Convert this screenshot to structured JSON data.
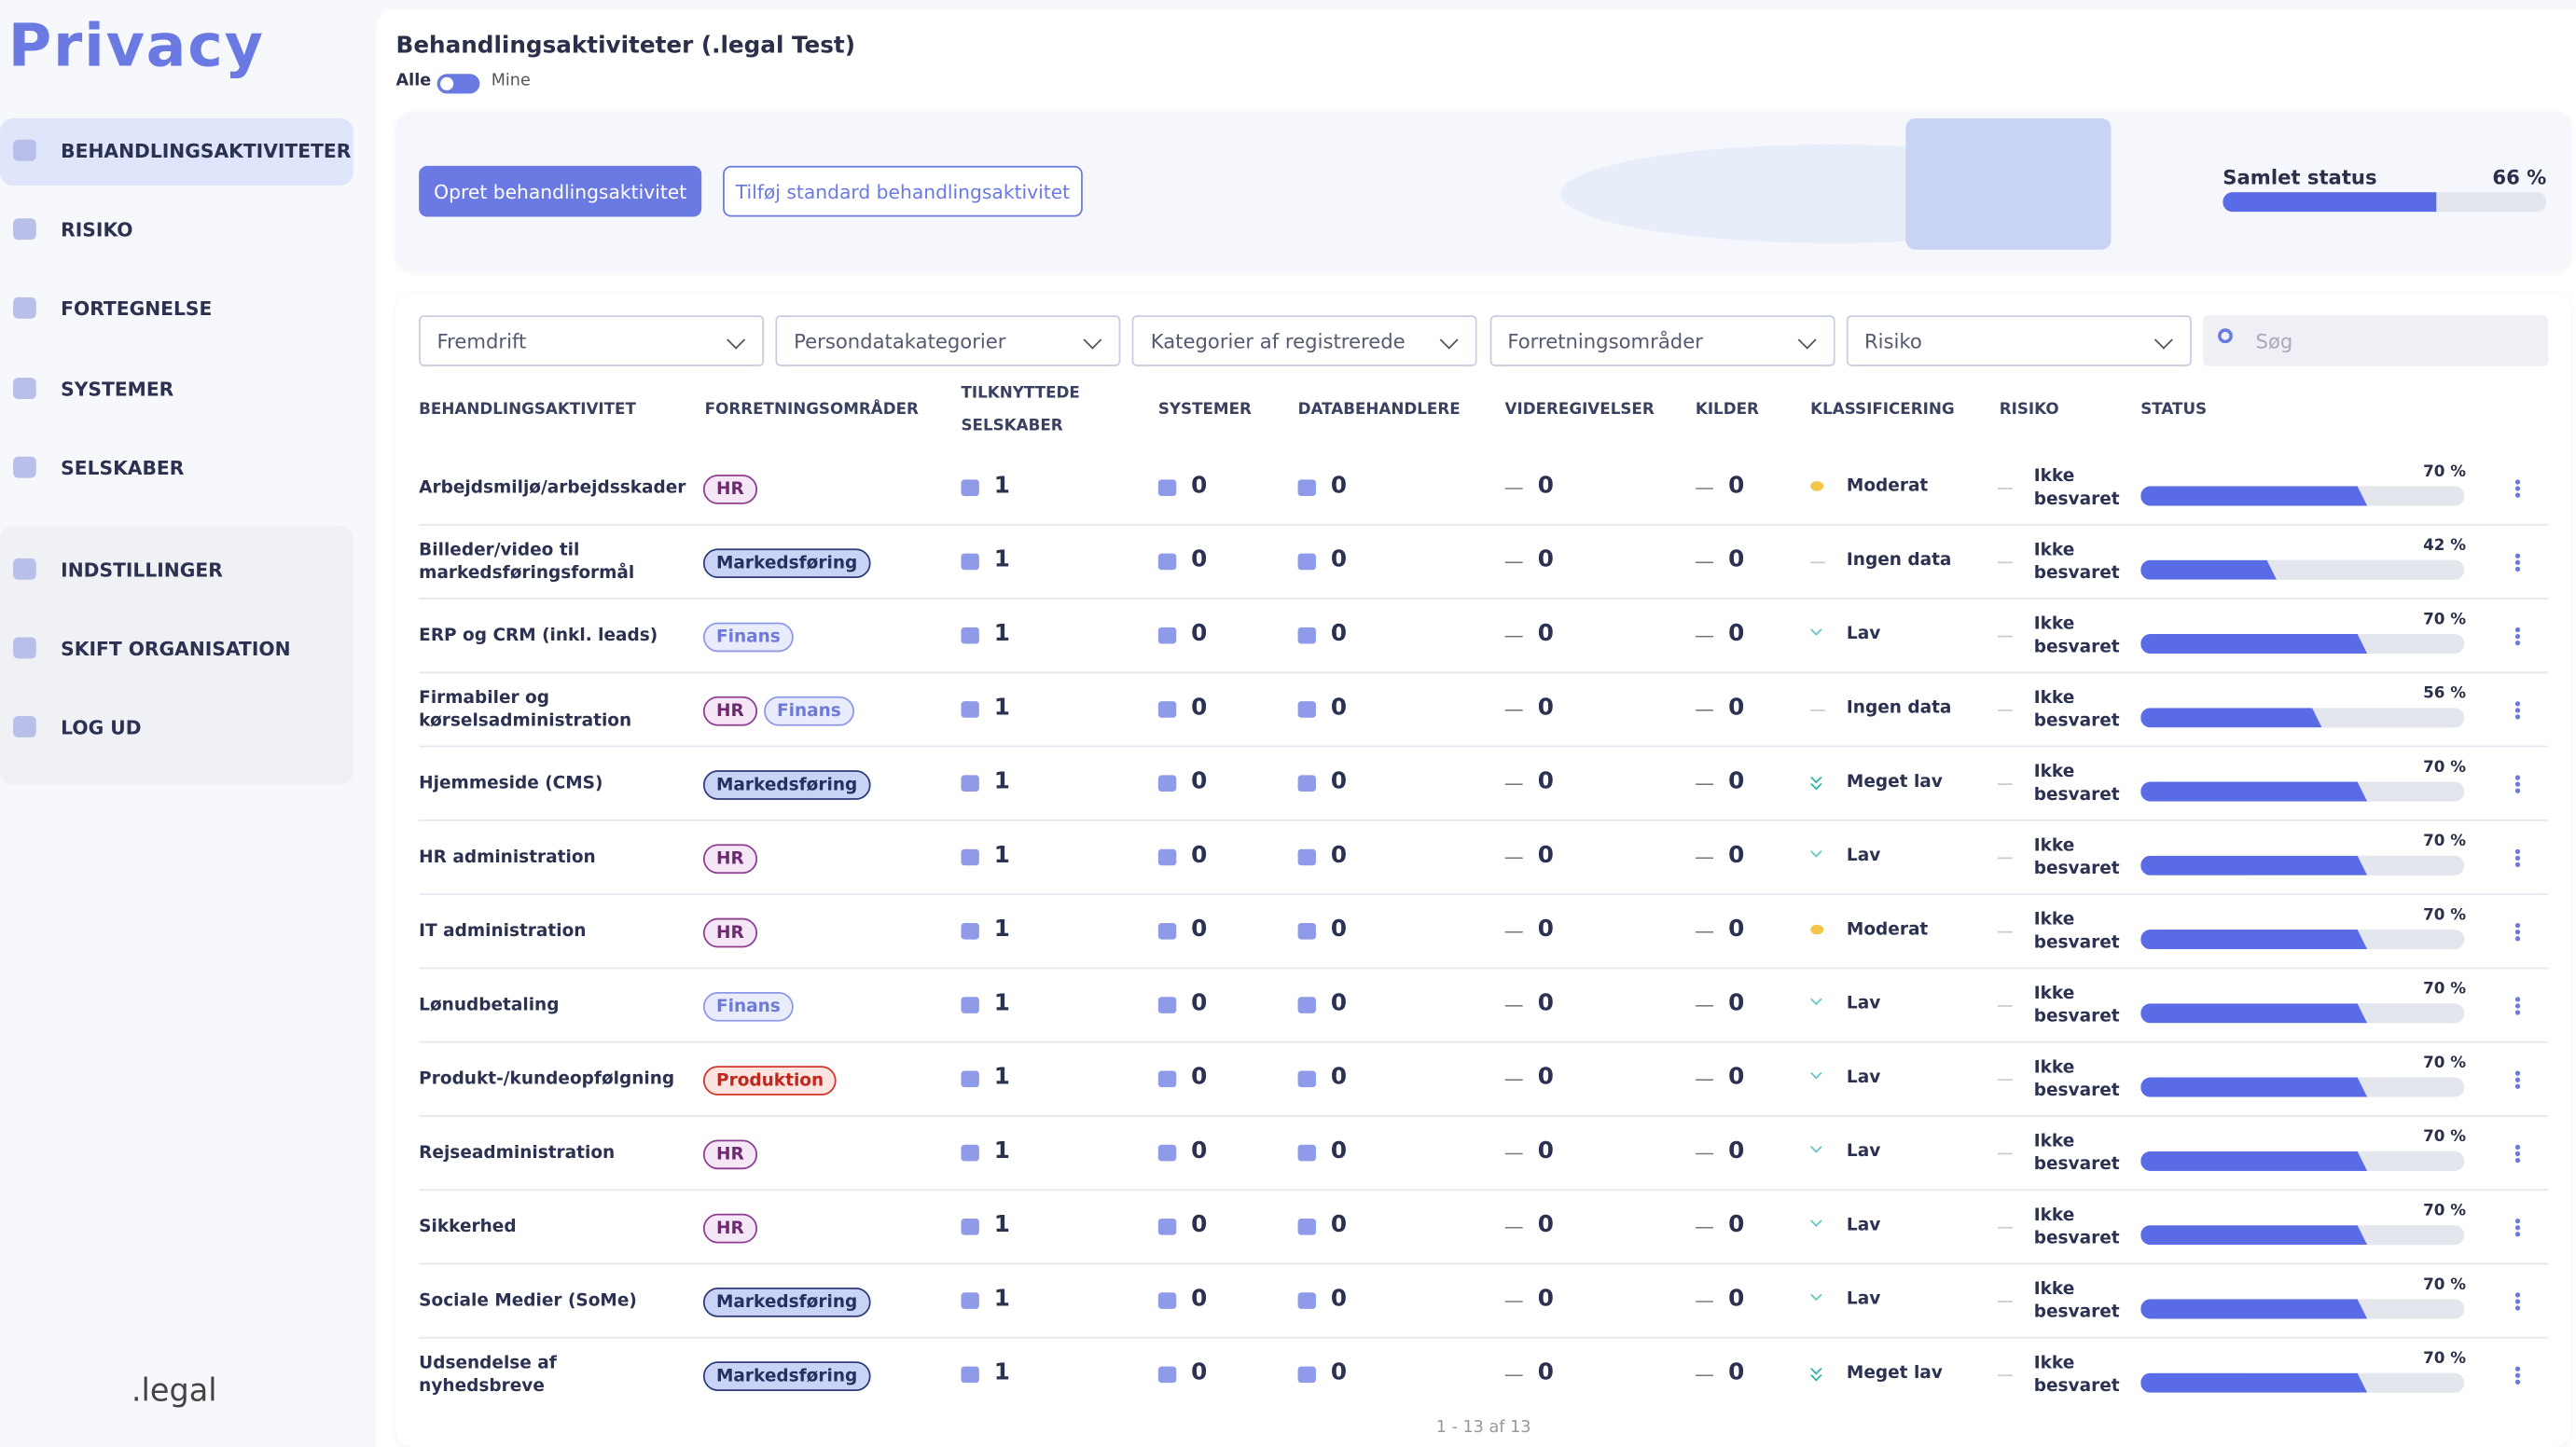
{
  "sidebar": {
    "logo": "Privacy",
    "nav": [
      "BEHANDLINGSAKTIVITETER",
      "RISIKO",
      "FORTEGNELSE",
      "SYSTEMER",
      "SELSKABER"
    ],
    "settings": [
      "INDSTILLINGER",
      "SKIFT ORGANISATION",
      "LOG UD"
    ],
    "footer": ".legal"
  },
  "header": {
    "title": "Behandlingsaktiviteter (.legal Test)",
    "toggle": [
      "Alle",
      "Mine"
    ]
  },
  "banner": {
    "buttons": [
      "Opret behandlingsaktivitet",
      "Tilføj standard behandlingsaktivitet"
    ],
    "status_label": "Samlet status",
    "status": 66,
    "status_text": "66 %"
  },
  "filters": [
    "Fremdrift",
    "Persondatakategorier",
    "Kategorier af registrerede",
    "Forretningsområder",
    "Risiko"
  ],
  "search": "Søg",
  "table": {
    "columns": [
      "BEHANDLINGSAKTIVITET",
      "FORRETNINGSOMRÅDER",
      "TILKNYTTEDE SELSKABER",
      "SYSTEMER",
      "DATABEHANDLERE",
      "VIDEREGIVELSER",
      "KILDER",
      "KLASSIFICERING",
      "RISIKO",
      "STATUS"
    ],
    "rows": [
      {
        "name": "Arbejdsmiljø/arbejdsskader",
        "tags": [
          "HR"
        ],
        "companies": 1,
        "systems": 0,
        "processors": 0,
        "disclosures": 0,
        "sources": 0,
        "classification": "Moderat",
        "classification_icon": "dot",
        "risk": "Ikke besvaret",
        "status": 70,
        "status_text": "70 %"
      },
      {
        "name": "Billeder/video til markedsføringsformål",
        "tags": [
          "Markedsføring"
        ],
        "companies": 1,
        "systems": 0,
        "processors": 0,
        "disclosures": 0,
        "sources": 0,
        "classification": "Ingen data",
        "classification_icon": "dash",
        "risk": "Ikke besvaret",
        "status": 42,
        "status_text": "42 %"
      },
      {
        "name": "ERP og CRM (inkl. leads)",
        "tags": [
          "Finans"
        ],
        "companies": 1,
        "systems": 0,
        "processors": 0,
        "disclosures": 0,
        "sources": 0,
        "classification": "Lav",
        "classification_icon": "chevron",
        "risk": "Ikke besvaret",
        "status": 70,
        "status_text": "70 %"
      },
      {
        "name": "Firmabiler og kørselsadministration",
        "tags": [
          "HR",
          "Finans"
        ],
        "companies": 1,
        "systems": 0,
        "processors": 0,
        "disclosures": 0,
        "sources": 0,
        "classification": "Ingen data",
        "classification_icon": "dash",
        "risk": "Ikke besvaret",
        "status": 56,
        "status_text": "56 %"
      },
      {
        "name": "Hjemmeside (CMS)",
        "tags": [
          "Markedsføring"
        ],
        "companies": 1,
        "systems": 0,
        "processors": 0,
        "disclosures": 0,
        "sources": 0,
        "classification": "Meget lav",
        "classification_icon": "double-chevron",
        "risk": "Ikke besvaret",
        "status": 70,
        "status_text": "70 %"
      },
      {
        "name": "HR administration",
        "tags": [
          "HR"
        ],
        "companies": 1,
        "systems": 0,
        "processors": 0,
        "disclosures": 0,
        "sources": 0,
        "classification": "Lav",
        "classification_icon": "chevron",
        "risk": "Ikke besvaret",
        "status": 70,
        "status_text": "70 %"
      },
      {
        "name": "IT administration",
        "tags": [
          "HR"
        ],
        "companies": 1,
        "systems": 0,
        "processors": 0,
        "disclosures": 0,
        "sources": 0,
        "classification": "Moderat",
        "classification_icon": "dot",
        "risk": "Ikke besvaret",
        "status": 70,
        "status_text": "70 %"
      },
      {
        "name": "Lønudbetaling",
        "tags": [
          "Finans"
        ],
        "companies": 1,
        "systems": 0,
        "processors": 0,
        "disclosures": 0,
        "sources": 0,
        "classification": "Lav",
        "classification_icon": "chevron",
        "risk": "Ikke besvaret",
        "status": 70,
        "status_text": "70 %"
      },
      {
        "name": "Produkt-/kundeopfølgning",
        "tags": [
          "Produktion"
        ],
        "companies": 1,
        "systems": 0,
        "processors": 0,
        "disclosures": 0,
        "sources": 0,
        "classification": "Lav",
        "classification_icon": "chevron",
        "risk": "Ikke besvaret",
        "status": 70,
        "status_text": "70 %"
      },
      {
        "name": "Rejseadministration",
        "tags": [
          "HR"
        ],
        "companies": 1,
        "systems": 0,
        "processors": 0,
        "disclosures": 0,
        "sources": 0,
        "classification": "Lav",
        "classification_icon": "chevron",
        "risk": "Ikke besvaret",
        "status": 70,
        "status_text": "70 %"
      },
      {
        "name": "Sikkerhed",
        "tags": [
          "HR"
        ],
        "companies": 1,
        "systems": 0,
        "processors": 0,
        "disclosures": 0,
        "sources": 0,
        "classification": "Lav",
        "classification_icon": "chevron",
        "risk": "Ikke besvaret",
        "status": 70,
        "status_text": "70 %"
      },
      {
        "name": "Sociale Medier (SoMe)",
        "tags": [
          "Markedsføring"
        ],
        "companies": 1,
        "systems": 0,
        "processors": 0,
        "disclosures": 0,
        "sources": 0,
        "classification": "Lav",
        "classification_icon": "chevron",
        "risk": "Ikke besvaret",
        "status": 70,
        "status_text": "70 %"
      },
      {
        "name": "Udsendelse af nyhedsbreve",
        "tags": [
          "Markedsføring"
        ],
        "companies": 1,
        "systems": 0,
        "processors": 0,
        "disclosures": 0,
        "sources": 0,
        "classification": "Meget lav",
        "classification_icon": "double-chevron",
        "risk": "Ikke besvaret",
        "status": 70,
        "status_text": "70 %"
      }
    ],
    "footer": "1 - 13 af 13"
  }
}
